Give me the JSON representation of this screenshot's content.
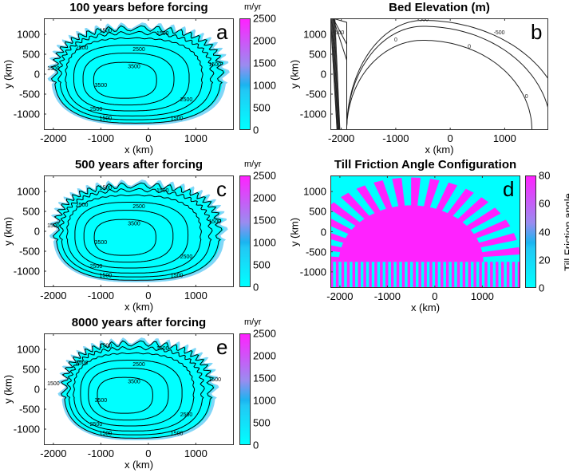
{
  "chart_data": [
    {
      "id": "a",
      "type": "heatmap",
      "title": "100 years before forcing",
      "letter": "a",
      "xlabel": "x (km)",
      "ylabel": "y (km)",
      "xlim": [
        -2200,
        1800
      ],
      "ylim": [
        -1400,
        1400
      ],
      "x_ticks": [
        "-2000",
        "-1000",
        "0",
        "1000"
      ],
      "x_tick_values": [
        -2000,
        -1000,
        0,
        1000
      ],
      "y_ticks": [
        "1000",
        "500",
        "0",
        "-500",
        "-1000"
      ],
      "y_tick_values": [
        1000,
        500,
        0,
        -500,
        -1000
      ],
      "colorbar": {
        "unit": "m/yr",
        "range": [
          0,
          2500
        ],
        "ticks": [
          "2500",
          "2000",
          "1500",
          "1000",
          "500",
          "0"
        ],
        "tick_values": [
          2500,
          2000,
          1500,
          1000,
          500,
          0
        ]
      },
      "contour_labels": [
        "1500",
        "1500",
        "2500",
        "2500",
        "3500",
        "3500",
        "2500",
        "2500",
        "1500",
        "1500",
        "1500",
        "1500"
      ],
      "contour_levels": [
        1500,
        2500,
        3500
      ],
      "margin_extent": 1.0
    },
    {
      "id": "b",
      "type": "contour",
      "title": "Bed Elevation (m)",
      "letter": "b",
      "xlabel": "x (km)",
      "ylabel": "y (km)",
      "xlim": [
        -2200,
        1800
      ],
      "ylim": [
        -1400,
        1400
      ],
      "x_ticks": [
        "-2000",
        "-1000",
        "0",
        "1000"
      ],
      "x_tick_values": [
        -2000,
        -1000,
        0,
        1000
      ],
      "y_ticks": [
        "1000",
        "500",
        "0",
        "-500",
        "-1000"
      ],
      "y_tick_values": [
        1000,
        500,
        0,
        -500,
        -1000
      ],
      "contour_labels": [
        "-500",
        "-500",
        "-500",
        "0",
        "0",
        "0"
      ],
      "contour_levels": [
        -500,
        0
      ]
    },
    {
      "id": "c",
      "type": "heatmap",
      "title": "500 years after forcing",
      "letter": "c",
      "xlabel": "x (km)",
      "ylabel": "y (km)",
      "xlim": [
        -2200,
        1800
      ],
      "ylim": [
        -1400,
        1400
      ],
      "x_ticks": [
        "-2000",
        "-1000",
        "0",
        "1000"
      ],
      "x_tick_values": [
        -2000,
        -1000,
        0,
        1000
      ],
      "y_ticks": [
        "1000",
        "500",
        "0",
        "-500",
        "-1000"
      ],
      "y_tick_values": [
        1000,
        500,
        0,
        -500,
        -1000
      ],
      "colorbar": {
        "unit": "m/yr",
        "range": [
          0,
          2500
        ],
        "ticks": [
          "2500",
          "2000",
          "1500",
          "1000",
          "500",
          "0"
        ],
        "tick_values": [
          2500,
          2000,
          1500,
          1000,
          500,
          0
        ]
      },
      "contour_labels": [
        "1500",
        "1500",
        "2500",
        "2500",
        "3500",
        "3500",
        "2500",
        "2500",
        "1500",
        "1500",
        "1500",
        "1500"
      ],
      "contour_levels": [
        1500,
        2500,
        3500
      ],
      "margin_extent": 0.98
    },
    {
      "id": "d",
      "type": "heatmap",
      "title": "Till Friction Angle Configuration",
      "letter": "d",
      "xlabel": "x (km)",
      "ylabel": "y (km)",
      "xlim": [
        -2200,
        1800
      ],
      "ylim": [
        -1400,
        1400
      ],
      "x_ticks": [
        "-2000",
        "-1000",
        "0",
        "1000"
      ],
      "x_tick_values": [
        -2000,
        -1000,
        0,
        1000
      ],
      "y_ticks": [
        "1000",
        "500",
        "0",
        "-500",
        "-1000"
      ],
      "y_tick_values": [
        1000,
        500,
        0,
        -500,
        -1000
      ],
      "colorbar": {
        "label": "Till Friction angle",
        "range": [
          0,
          80
        ],
        "ticks": [
          "80",
          "60",
          "40",
          "20",
          "0"
        ],
        "tick_values": [
          80,
          60,
          40,
          20,
          0
        ]
      }
    },
    {
      "id": "e",
      "type": "heatmap",
      "title": "8000 years after forcing",
      "letter": "e",
      "xlabel": "x (km)",
      "ylabel": "y (km)",
      "xlim": [
        -2200,
        1800
      ],
      "ylim": [
        -1400,
        1400
      ],
      "x_ticks": [
        "-2000",
        "-1000",
        "0",
        "1000"
      ],
      "x_tick_values": [
        -2000,
        -1000,
        0,
        1000
      ],
      "y_ticks": [
        "1000",
        "500",
        "0",
        "-500",
        "-1000"
      ],
      "y_tick_values": [
        1000,
        500,
        0,
        -500,
        -1000
      ],
      "colorbar": {
        "unit": "m/yr",
        "range": [
          0,
          2500
        ],
        "ticks": [
          "2500",
          "2000",
          "1500",
          "1000",
          "500",
          "0"
        ],
        "tick_values": [
          2500,
          2000,
          1500,
          1000,
          500,
          0
        ]
      },
      "contour_labels": [
        "1500",
        "1500",
        "2500",
        "2500",
        "3500",
        "3500",
        "2500",
        "2500",
        "1500",
        "1500",
        "1500",
        "1500"
      ],
      "contour_levels": [
        1500,
        2500,
        3500
      ],
      "margin_extent": 0.88
    }
  ],
  "colors": {
    "cyan": "#00ffff",
    "blue": "#1ab4f0",
    "lavender": "#9a8cf0",
    "magenta": "#ff22ff"
  }
}
